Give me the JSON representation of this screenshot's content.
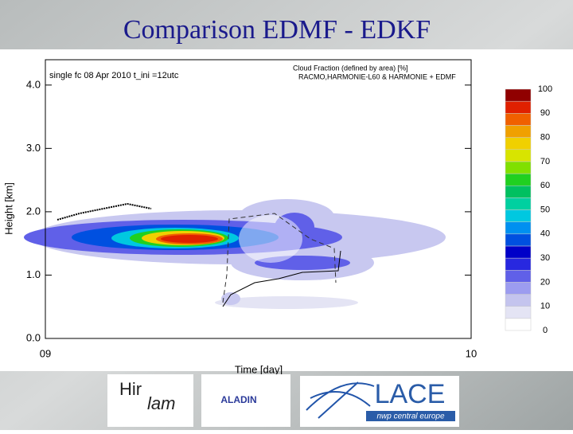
{
  "chart_data": {
    "type": "contour",
    "title": "Comparison EDMF - EDKF",
    "subtitle": "single fc  08 Apr 2010   t_ini =12utc",
    "annotations": [
      "Cloud Fraction (defined by area) [%]",
      "RACMO,HARMONIE-L60 & HARMONIE + EDMF"
    ],
    "x_label": "Time  [day]",
    "y_label": "Height [km]",
    "xlim": [
      9,
      10
    ],
    "xticks": [
      {
        "value": 9,
        "label": "09"
      },
      {
        "value": 10,
        "label": "10"
      }
    ],
    "ylim": [
      0,
      4.4
    ],
    "yticks": [
      {
        "value": 0,
        "label": "0.0"
      },
      {
        "value": 1,
        "label": "1.0"
      },
      {
        "value": 2,
        "label": "2.0"
      },
      {
        "value": 3,
        "label": "3.0"
      },
      {
        "value": 4,
        "label": "4.0"
      }
    ],
    "colorbar": {
      "ticks": [
        0,
        10,
        20,
        30,
        40,
        50,
        60,
        70,
        80,
        90,
        100
      ],
      "colors": [
        "#ffffff",
        "#e4e4f4",
        "#c4c4ee",
        "#9c9cf0",
        "#6060e8",
        "#2828e0",
        "#0000c8",
        "#0050e0",
        "#0090f0",
        "#00c8e0",
        "#00d0a0",
        "#00c060",
        "#20d020",
        "#80e000",
        "#d8e400",
        "#f0d000",
        "#f0a000",
        "#f06000",
        "#e02000",
        "#900000"
      ]
    },
    "logos": [
      "Hir",
      "lam",
      "ALADIN",
      "LACE",
      "nwp central europe"
    ]
  }
}
